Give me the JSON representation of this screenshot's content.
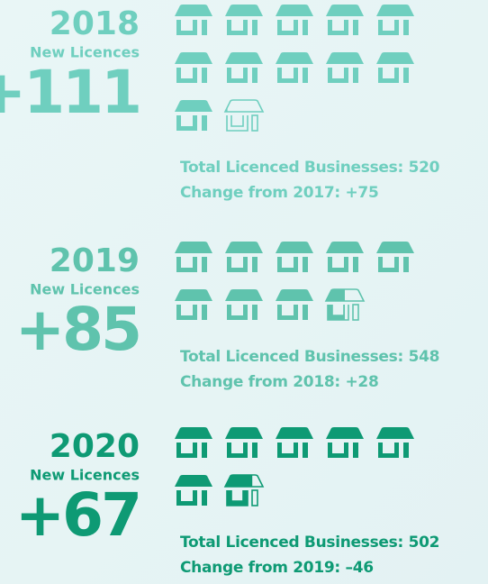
{
  "chart_data": {
    "type": "pictograph",
    "categories": [
      "2018",
      "2019",
      "2020"
    ],
    "series_label": "New Licences",
    "values": [
      111,
      85,
      67
    ],
    "value_labels": [
      "+111",
      "+85",
      "+67"
    ],
    "totals": [
      "Total Licenced Businesses: 520",
      "Total Licenced Businesses: 548",
      "Total Licenced Businesses: 502"
    ],
    "changes": [
      "Change from 2017: +75",
      "Change from 2018: +28",
      "Change from 2019: –46"
    ],
    "colors": [
      "#6fcfbf",
      "#5fc3ad",
      "#0e9a74"
    ]
  }
}
